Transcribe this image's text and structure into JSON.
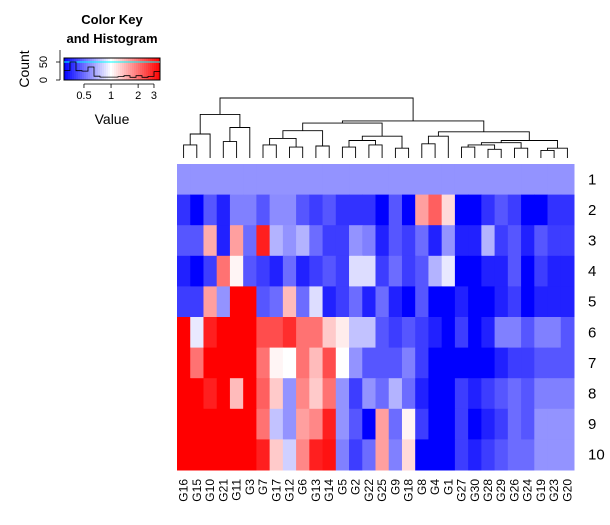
{
  "chart_data": {
    "type": "heatmap",
    "title": "",
    "color_key": {
      "title_line1": "Color Key",
      "title_line2": "and Histogram",
      "ylabel": "Count",
      "y_ticks": [
        "0",
        "50"
      ],
      "xlabel": "Value",
      "x_ticks": [
        "0.5",
        "1",
        "2",
        "3"
      ],
      "x_tick_values": [
        0.5,
        1,
        2,
        3
      ],
      "value_range": [
        0.3,
        3.5
      ],
      "scale": "log",
      "palette": [
        "#0000ff",
        "#ffffff",
        "#ff0000"
      ]
    },
    "columns": [
      "G16",
      "G15",
      "G10",
      "G21",
      "G11",
      "G3",
      "G7",
      "G17",
      "G12",
      "G6",
      "G13",
      "G14",
      "G5",
      "G2",
      "G22",
      "G25",
      "G9",
      "G18",
      "G8",
      "G4",
      "G1",
      "G27",
      "G30",
      "G28",
      "G29",
      "G26",
      "G24",
      "G19",
      "G23",
      "G20"
    ],
    "rows": [
      "1",
      "2",
      "3",
      "4",
      "5",
      "6",
      "7",
      "8",
      "9",
      "10"
    ],
    "values": [
      [
        0.6,
        0.6,
        0.6,
        0.6,
        0.6,
        0.6,
        0.6,
        0.6,
        0.6,
        0.6,
        0.6,
        0.6,
        0.6,
        0.6,
        0.6,
        0.6,
        0.6,
        0.6,
        0.6,
        0.6,
        0.6,
        0.6,
        0.6,
        0.6,
        0.6,
        0.6,
        0.6,
        0.6,
        0.6,
        0.6
      ],
      [
        0.38,
        0.3,
        0.45,
        0.35,
        0.55,
        0.55,
        0.45,
        0.58,
        0.58,
        0.45,
        0.4,
        0.45,
        0.38,
        0.38,
        0.38,
        0.3,
        0.45,
        0.3,
        1.6,
        2.2,
        1.2,
        0.3,
        0.3,
        0.38,
        0.45,
        0.4,
        0.3,
        0.3,
        0.38,
        0.38
      ],
      [
        0.45,
        0.45,
        1.5,
        0.35,
        1.6,
        0.5,
        3.0,
        0.7,
        0.6,
        0.7,
        0.5,
        0.4,
        0.4,
        0.6,
        0.55,
        0.35,
        0.45,
        0.4,
        0.5,
        0.35,
        0.6,
        0.35,
        0.35,
        0.7,
        0.4,
        0.45,
        0.35,
        0.45,
        0.4,
        0.4
      ],
      [
        0.35,
        0.3,
        0.4,
        2.0,
        1.05,
        0.45,
        0.4,
        0.35,
        0.5,
        0.35,
        0.4,
        0.45,
        0.4,
        0.85,
        0.85,
        0.4,
        0.5,
        0.4,
        0.45,
        0.7,
        0.9,
        0.3,
        0.3,
        0.35,
        0.35,
        0.45,
        0.3,
        0.4,
        0.35,
        0.35
      ],
      [
        0.4,
        0.4,
        1.6,
        0.6,
        3.5,
        3.5,
        0.45,
        0.5,
        1.4,
        0.5,
        0.85,
        0.35,
        0.4,
        0.5,
        0.35,
        0.5,
        0.35,
        0.3,
        0.45,
        0.25,
        0.25,
        0.35,
        0.25,
        0.25,
        0.35,
        0.4,
        0.3,
        0.35,
        0.35,
        0.35
      ],
      [
        3.5,
        0.9,
        3.0,
        3.5,
        3.5,
        3.5,
        2.4,
        2.4,
        2.8,
        2.0,
        2.0,
        1.3,
        1.1,
        0.75,
        0.75,
        0.45,
        0.4,
        0.45,
        0.4,
        0.35,
        0.3,
        0.4,
        0.3,
        0.35,
        0.55,
        0.55,
        0.45,
        0.55,
        0.55,
        0.45
      ],
      [
        3.5,
        2.0,
        3.5,
        3.5,
        3.5,
        3.5,
        2.0,
        1.05,
        1.0,
        2.0,
        1.4,
        2.4,
        1.0,
        0.6,
        0.45,
        0.45,
        0.45,
        0.55,
        0.4,
        0.3,
        0.3,
        0.3,
        0.25,
        0.3,
        0.35,
        0.4,
        0.4,
        0.45,
        0.45,
        0.45
      ],
      [
        3.5,
        3.5,
        3.0,
        3.5,
        1.4,
        3.5,
        2.2,
        1.3,
        0.6,
        1.8,
        1.3,
        2.0,
        0.6,
        0.4,
        0.6,
        0.5,
        0.7,
        0.5,
        0.35,
        0.3,
        0.3,
        0.4,
        0.35,
        0.4,
        0.45,
        0.5,
        0.45,
        0.55,
        0.55,
        0.55
      ],
      [
        3.5,
        3.5,
        3.5,
        3.5,
        3.5,
        3.5,
        2.0,
        0.75,
        0.6,
        1.6,
        1.8,
        3.0,
        0.6,
        0.45,
        0.3,
        1.6,
        0.5,
        1.05,
        0.4,
        0.3,
        0.3,
        0.4,
        0.3,
        0.35,
        0.4,
        0.5,
        0.45,
        0.6,
        0.6,
        0.6
      ],
      [
        3.5,
        3.5,
        3.5,
        3.5,
        3.5,
        3.5,
        3.0,
        1.3,
        0.8,
        1.8,
        3.0,
        3.2,
        0.55,
        0.4,
        0.5,
        1.6,
        0.55,
        1.2,
        0.3,
        0.3,
        0.3,
        0.4,
        0.35,
        0.4,
        0.45,
        0.5,
        0.5,
        0.6,
        0.6,
        0.6
      ]
    ],
    "col_dendrogram": [
      {
        "a": 0,
        "b": 1,
        "h": 0.12
      },
      {
        "a": "m0",
        "b": 2,
        "h": 0.22
      },
      {
        "a": 3,
        "b": 4,
        "h": 0.15
      },
      {
        "a": "m2",
        "b": 5,
        "h": 0.28
      },
      {
        "a": "m1",
        "b": "m3",
        "h": 0.4
      },
      {
        "a": 6,
        "b": 7,
        "h": 0.12
      },
      {
        "a": 8,
        "b": 9,
        "h": 0.1
      },
      {
        "a": "m5",
        "b": "m6",
        "h": 0.18
      },
      {
        "a": 10,
        "b": 11,
        "h": 0.11
      },
      {
        "a": "m7",
        "b": "m8",
        "h": 0.25
      },
      {
        "a": 12,
        "b": 13,
        "h": 0.1
      },
      {
        "a": 14,
        "b": 15,
        "h": 0.12
      },
      {
        "a": "m10",
        "b": "m11",
        "h": 0.16
      },
      {
        "a": 16,
        "b": 17,
        "h": 0.09
      },
      {
        "a": "m12",
        "b": "m13",
        "h": 0.2
      },
      {
        "a": "m9",
        "b": "m14",
        "h": 0.32
      },
      {
        "a": 18,
        "b": 19,
        "h": 0.13
      },
      {
        "a": "m16",
        "b": 20,
        "h": 0.2
      },
      {
        "a": 21,
        "b": 22,
        "h": 0.1
      },
      {
        "a": 23,
        "b": 24,
        "h": 0.08
      },
      {
        "a": "m18",
        "b": "m19",
        "h": 0.12
      },
      {
        "a": 25,
        "b": 26,
        "h": 0.09
      },
      {
        "a": "m20",
        "b": "m21",
        "h": 0.14
      },
      {
        "a": 27,
        "b": 28,
        "h": 0.07
      },
      {
        "a": "m23",
        "b": 29,
        "h": 0.09
      },
      {
        "a": "m22",
        "b": "m24",
        "h": 0.16
      },
      {
        "a": "m17",
        "b": "m25",
        "h": 0.24
      },
      {
        "a": "m15",
        "b": "m26",
        "h": 0.34
      },
      {
        "a": "m4",
        "b": "m27",
        "h": 0.55
      }
    ]
  }
}
